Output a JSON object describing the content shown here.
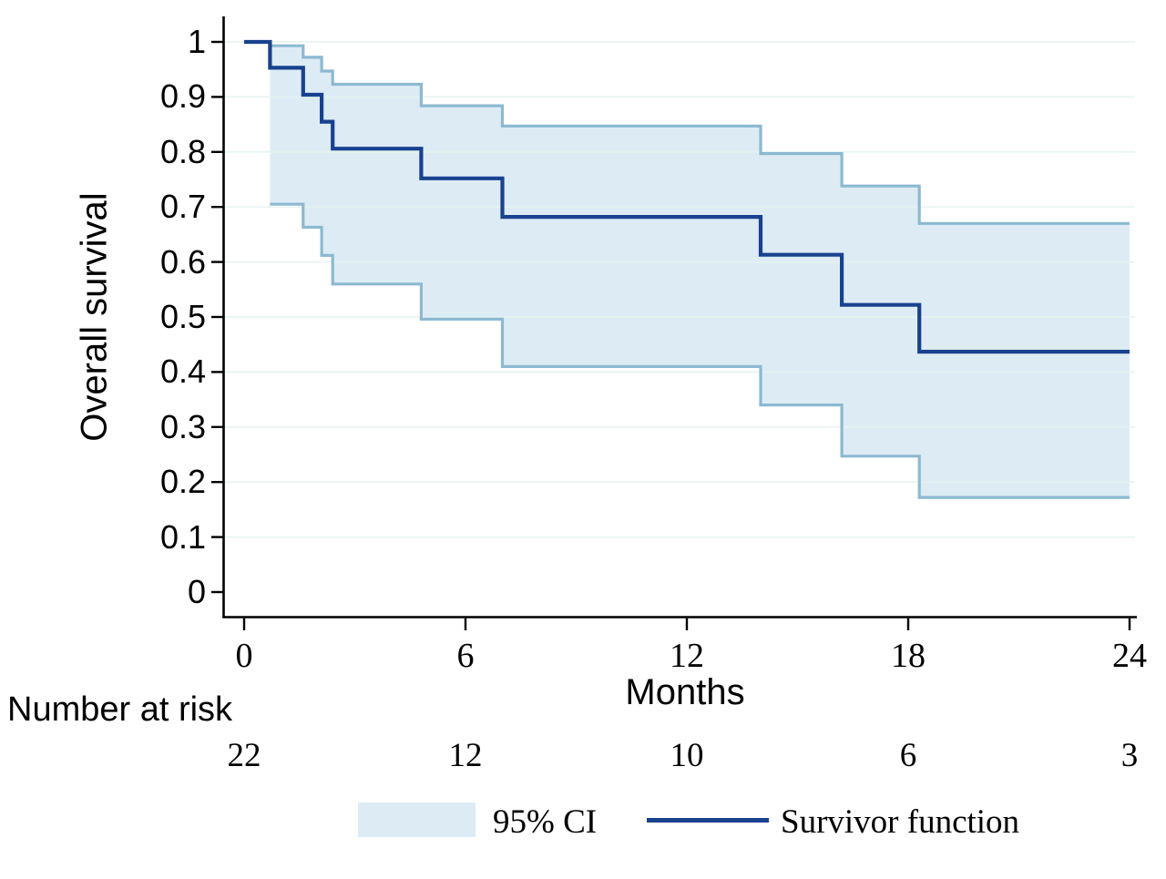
{
  "chart_data": {
    "type": "line",
    "subtype": "kaplan-meier-step",
    "title": "",
    "xlabel": "Months",
    "ylabel": "Overall survival",
    "xlim": [
      0,
      24
    ],
    "ylim": [
      0,
      1
    ],
    "x_ticks": [
      0,
      6,
      12,
      18,
      24
    ],
    "y_ticks": [
      "0",
      "0.1",
      "0.2",
      "0.3",
      "0.4",
      "0.5",
      "0.6",
      "0.7",
      "0.8",
      "0.9",
      "1"
    ],
    "grid": "horizontal",
    "gridline_color": "#e5f3f0",
    "axis_color": "#000000",
    "ci_fill_color": "#ddecf4",
    "ci_border_color": "#8cb9d1",
    "series": [
      {
        "name": "Survivor function",
        "color": "#18418f",
        "style": "step",
        "points": [
          [
            0,
            1.0
          ],
          [
            0.7,
            0.953
          ],
          [
            1.6,
            0.904
          ],
          [
            2.1,
            0.855
          ],
          [
            2.4,
            0.806
          ],
          [
            4.8,
            0.752
          ],
          [
            7.0,
            0.682
          ],
          [
            14.0,
            0.613
          ],
          [
            16.2,
            0.522
          ],
          [
            18.3,
            0.437
          ],
          [
            24,
            0.437
          ]
        ]
      },
      {
        "name": "95% CI upper bound",
        "color": "#8cb9d1",
        "style": "step",
        "points": [
          [
            0.7,
            0.993
          ],
          [
            1.6,
            0.972
          ],
          [
            2.1,
            0.947
          ],
          [
            2.4,
            0.923
          ],
          [
            4.8,
            0.884
          ],
          [
            7.0,
            0.847
          ],
          [
            14.0,
            0.797
          ],
          [
            16.2,
            0.738
          ],
          [
            18.3,
            0.67
          ],
          [
            24,
            0.67
          ]
        ]
      },
      {
        "name": "95% CI lower bound",
        "color": "#8cb9d1",
        "style": "step",
        "points": [
          [
            0.7,
            0.705
          ],
          [
            1.6,
            0.663
          ],
          [
            2.1,
            0.612
          ],
          [
            2.4,
            0.56
          ],
          [
            4.8,
            0.496
          ],
          [
            7.0,
            0.41
          ],
          [
            14.0,
            0.34
          ],
          [
            16.2,
            0.247
          ],
          [
            18.3,
            0.172
          ],
          [
            24,
            0.172
          ]
        ]
      }
    ],
    "legend": [
      {
        "type": "swatch",
        "label": "95% CI"
      },
      {
        "type": "line",
        "label": "Survivor function"
      }
    ],
    "legend_position": "bottom-center",
    "risk_table": {
      "label": "Number at risk",
      "times": [
        0,
        6,
        12,
        18,
        24
      ],
      "values": [
        "22",
        "12",
        "10",
        "6",
        "3"
      ]
    }
  }
}
